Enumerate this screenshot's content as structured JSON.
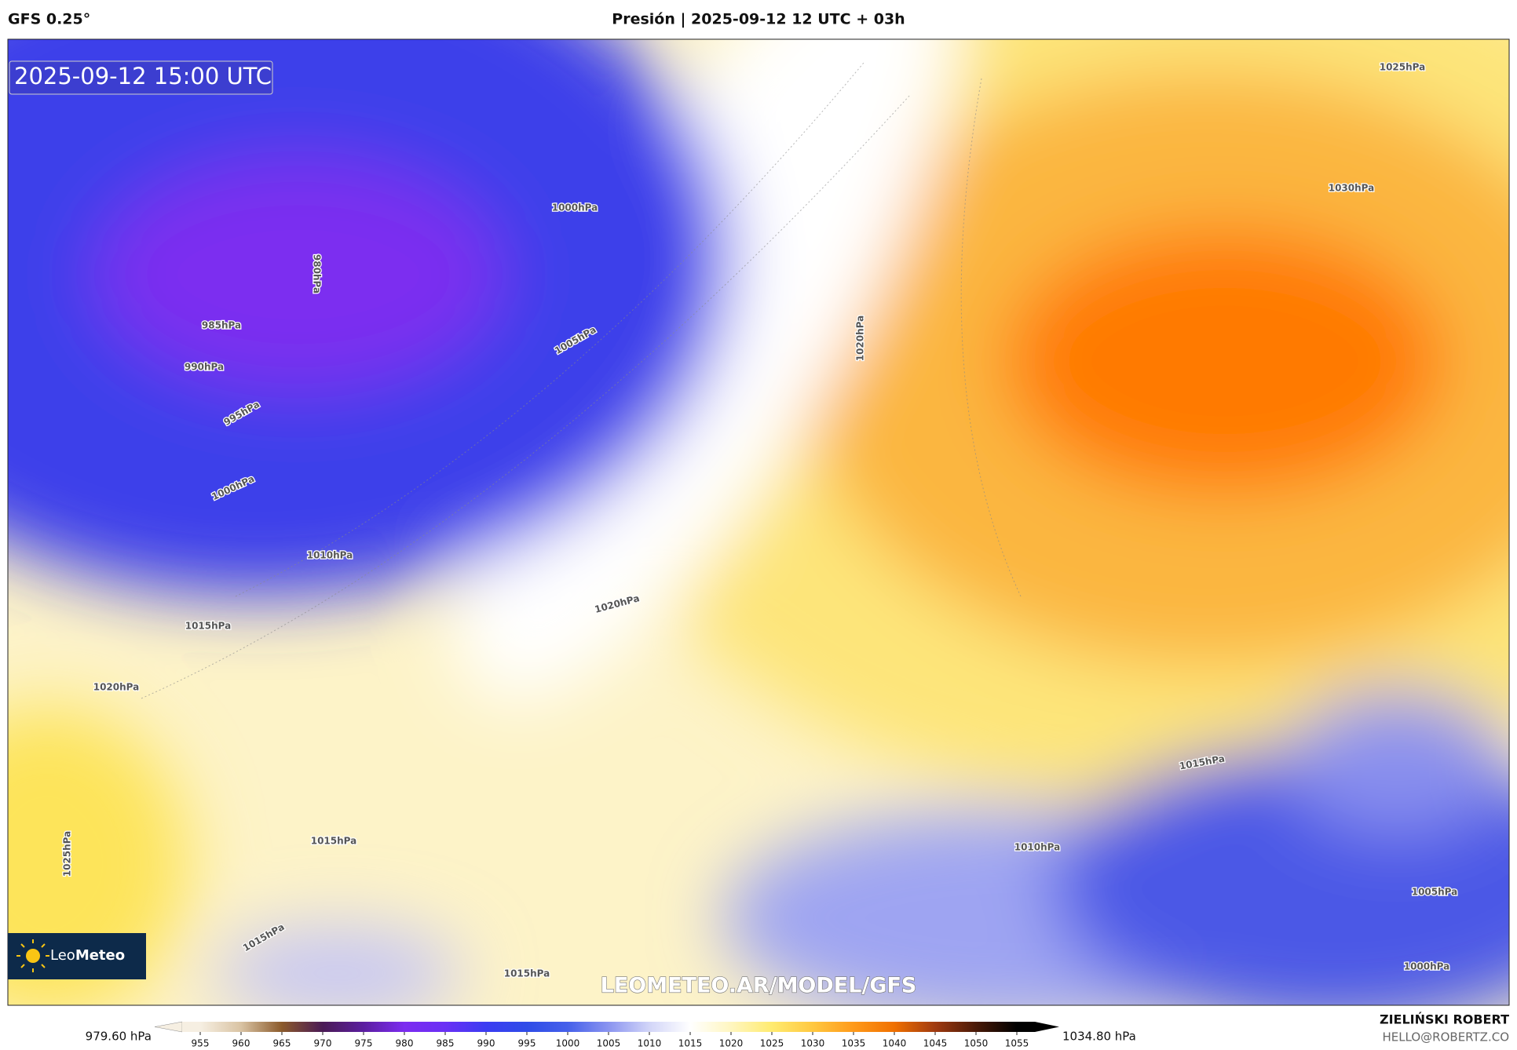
{
  "header": {
    "model": "GFS 0.25°",
    "title": "Presión | 2025-09-12 12 UTC + 03h"
  },
  "map": {
    "timestamp": "2025-09-12 15:00 UTC",
    "logo_regular": "Leo",
    "logo_bold": "Meteo",
    "watermark": "LEOMETEO.AR/MODEL/GFS",
    "isobar_labels": [
      "1025hPa",
      "1030hPa",
      "1000hPa",
      "980hPa",
      "985hPa",
      "990hPa",
      "995hPa",
      "1005hPa",
      "1000hPa",
      "1020hPa",
      "1010hPa",
      "1015hPa",
      "1020hPa",
      "1020hPa",
      "1015hPa",
      "1025hPa",
      "1010hPa",
      "1015hPa",
      "1005hPa",
      "1000hPa",
      "1015hPa",
      "1015hPa"
    ]
  },
  "colorbar": {
    "min_label": "979.60 hPa",
    "max_label": "1034.80 hPa",
    "ticks": [
      955,
      960,
      965,
      970,
      975,
      980,
      985,
      990,
      995,
      1000,
      1005,
      1010,
      1015,
      1020,
      1025,
      1030,
      1035,
      1040,
      1045,
      1050,
      1055
    ],
    "colors": [
      "#f6efe2",
      "#d9c3a3",
      "#8b5a2b",
      "#4a1a55",
      "#5b1ea0",
      "#7c2cf0",
      "#6a30f5",
      "#3b3cf2",
      "#2f4ce8",
      "#4560ea",
      "#8a94f0",
      "#d2d5f8",
      "#ffffff",
      "#fff6c0",
      "#ffeb70",
      "#ffc840",
      "#ff9a1a",
      "#f07000",
      "#a03a10",
      "#4a1a08",
      "#000000"
    ]
  },
  "footer": {
    "author": "ZIELIŃSKI ROBERT",
    "email": "HELLO@ROBERTZ.CO"
  }
}
